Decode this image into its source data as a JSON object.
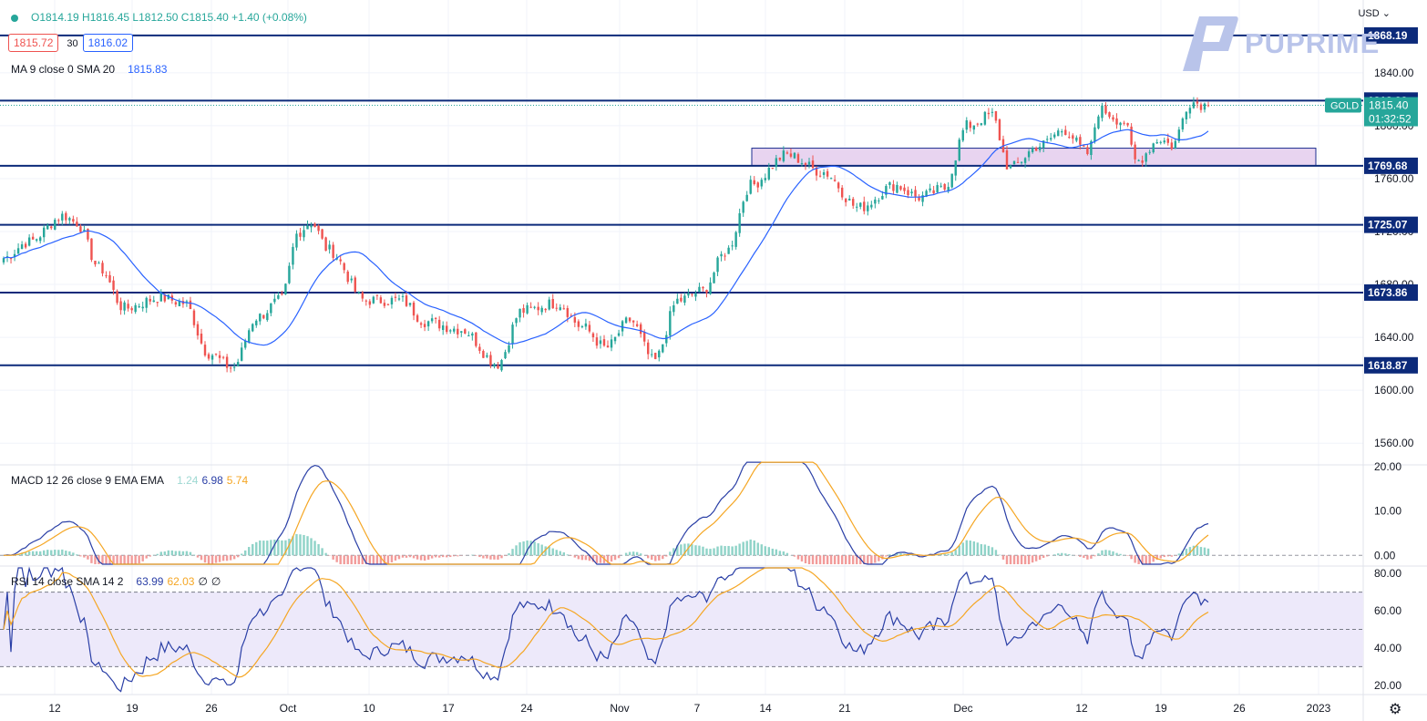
{
  "header": {
    "symbol_dot_color": "#26a69a",
    "ohlc": "O1814.19 H1816.45 L1812.50 C1815.40 +1.40 (+0.08%)",
    "bid": "1815.72",
    "spread": "30",
    "ask": "1816.02",
    "ma_label": "MA 9 close 0 SMA 20",
    "ma_value": "1815.83",
    "currency": "USD",
    "currency_icon": "chevron-down-icon"
  },
  "brand": {
    "name": "PUPRIME",
    "color": "#b9c4ea"
  },
  "settings_icon": "gear-icon",
  "colors": {
    "up": "#26a69a",
    "down": "#ef5350",
    "ma": "#2962ff",
    "level_line": "#0c2a7a",
    "zone_fill": "#e8d4f0",
    "zone_stroke": "#1b2d8f",
    "macd_line": "#2a3fa6",
    "signal_line": "#f5a623",
    "rsi_line": "#2a3fa6",
    "rsi_sma": "#f5a623",
    "rsi_band": "#ede9fa"
  },
  "chart_data": [
    {
      "type": "candlestick",
      "title": "GOLD",
      "ylim": [
        1545,
        1895
      ],
      "y_ticks": [
        "1840.00",
        "1800.00",
        "1760.00",
        "1720.00",
        "1680.00",
        "1640.00",
        "1600.00",
        "1560.00"
      ],
      "x_ticks": [
        "12",
        "19",
        "26",
        "Oct",
        "10",
        "17",
        "24",
        "Nov",
        "7",
        "14",
        "21",
        "Dec",
        "12",
        "19",
        "26",
        "2023"
      ],
      "levels": [
        {
          "label": "1868.19",
          "value": 1868.19
        },
        {
          "label": "1818.99",
          "value": 1818.99
        },
        {
          "label": "1769.68",
          "value": 1769.68
        },
        {
          "label": "1725.07",
          "value": 1725.07
        },
        {
          "label": "1673.86",
          "value": 1673.86
        },
        {
          "label": "1618.87",
          "value": 1618.87
        }
      ],
      "zone": {
        "from": 1769.68,
        "to": 1783.0,
        "start": "14 Nov",
        "end": "31 Dec"
      },
      "current": {
        "label": "GOLD",
        "price": "1815.40",
        "price_value": 1815.4,
        "countdown": "01:32:52"
      },
      "path_keypoints": [
        {
          "t": 0.0,
          "p": 1700
        },
        {
          "t": 0.02,
          "p": 1712
        },
        {
          "t": 0.05,
          "p": 1732
        },
        {
          "t": 0.06,
          "p": 1727
        },
        {
          "t": 0.08,
          "p": 1692
        },
        {
          "t": 0.1,
          "p": 1662
        },
        {
          "t": 0.13,
          "p": 1670
        },
        {
          "t": 0.15,
          "p": 1666
        },
        {
          "t": 0.17,
          "p": 1628
        },
        {
          "t": 0.19,
          "p": 1617
        },
        {
          "t": 0.21,
          "p": 1655
        },
        {
          "t": 0.23,
          "p": 1668
        },
        {
          "t": 0.245,
          "p": 1720
        },
        {
          "t": 0.255,
          "p": 1727
        },
        {
          "t": 0.27,
          "p": 1706
        },
        {
          "t": 0.3,
          "p": 1668
        },
        {
          "t": 0.33,
          "p": 1668
        },
        {
          "t": 0.35,
          "p": 1652
        },
        {
          "t": 0.38,
          "p": 1646
        },
        {
          "t": 0.41,
          "p": 1620
        },
        {
          "t": 0.43,
          "p": 1660
        },
        {
          "t": 0.46,
          "p": 1666
        },
        {
          "t": 0.48,
          "p": 1648
        },
        {
          "t": 0.5,
          "p": 1632
        },
        {
          "t": 0.52,
          "p": 1653
        },
        {
          "t": 0.54,
          "p": 1622
        },
        {
          "t": 0.56,
          "p": 1668
        },
        {
          "t": 0.58,
          "p": 1675
        },
        {
          "t": 0.6,
          "p": 1705
        },
        {
          "t": 0.62,
          "p": 1755
        },
        {
          "t": 0.65,
          "p": 1778
        },
        {
          "t": 0.68,
          "p": 1765
        },
        {
          "t": 0.71,
          "p": 1738
        },
        {
          "t": 0.74,
          "p": 1755
        },
        {
          "t": 0.76,
          "p": 1746
        },
        {
          "t": 0.78,
          "p": 1752
        },
        {
          "t": 0.8,
          "p": 1800
        },
        {
          "t": 0.82,
          "p": 1808
        },
        {
          "t": 0.835,
          "p": 1768
        },
        {
          "t": 0.86,
          "p": 1785
        },
        {
          "t": 0.88,
          "p": 1797
        },
        {
          "t": 0.9,
          "p": 1779
        },
        {
          "t": 0.91,
          "p": 1812
        },
        {
          "t": 0.93,
          "p": 1803
        },
        {
          "t": 0.94,
          "p": 1773
        },
        {
          "t": 0.96,
          "p": 1790
        },
        {
          "t": 0.97,
          "p": 1785
        },
        {
          "t": 0.985,
          "p": 1818
        },
        {
          "t": 1.0,
          "p": 1815.4
        }
      ]
    },
    {
      "type": "macd",
      "label": "MACD 12 26 close 9 EMA EMA",
      "values": [
        "1.24",
        "6.98",
        "5.74"
      ],
      "ylim": [
        -2,
        20
      ],
      "y_ticks": [
        "20.00",
        "10.00",
        "0.00"
      ]
    },
    {
      "type": "rsi",
      "label": "RSI 14 close SMA 14 2",
      "values": [
        "63.99",
        "62.03",
        "∅",
        "∅"
      ],
      "ylim": [
        15,
        83
      ],
      "bands": [
        30,
        50,
        70
      ],
      "y_ticks": [
        "80.00",
        "60.00",
        "40.00",
        "20.00"
      ]
    }
  ]
}
